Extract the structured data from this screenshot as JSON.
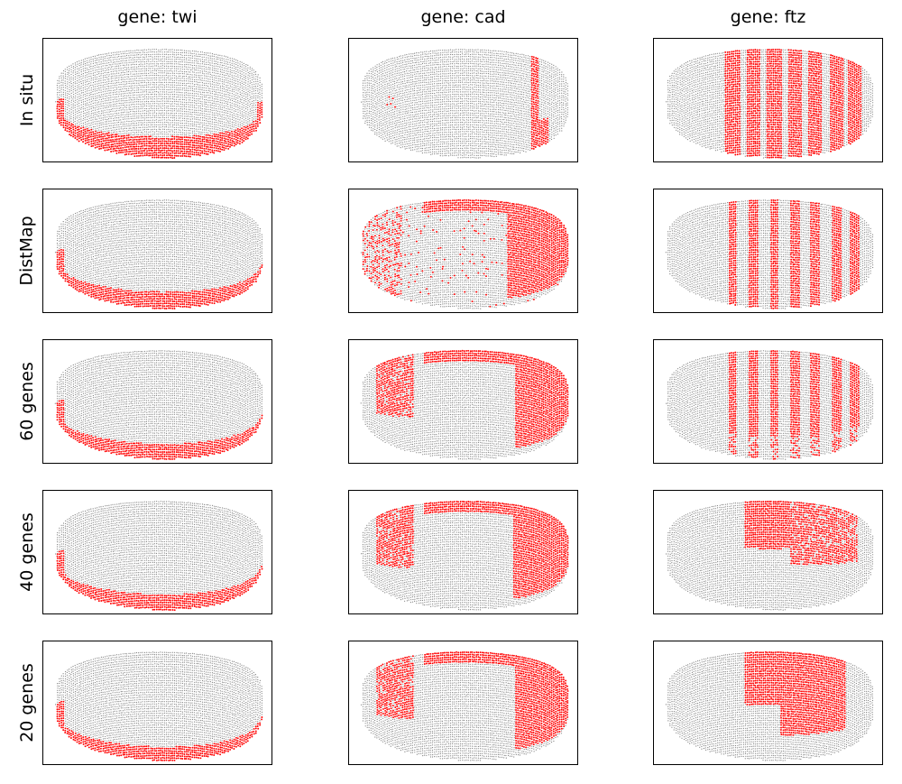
{
  "chart_data": {
    "type": "scatter",
    "columns": [
      {
        "title": "gene: twi",
        "gene": "twi"
      },
      {
        "title": "gene: cad",
        "gene": "cad"
      },
      {
        "title": "gene: ftz",
        "gene": "ftz"
      }
    ],
    "rows": [
      {
        "label": "In situ"
      },
      {
        "label": "DistMap"
      },
      {
        "label": "60 genes"
      },
      {
        "label": "40 genes"
      },
      {
        "label": "20 genes"
      }
    ],
    "point_colors": {
      "expressed": "#ff0000",
      "not_expressed": "#808080"
    },
    "grid": false,
    "axes_ticks": false
  }
}
